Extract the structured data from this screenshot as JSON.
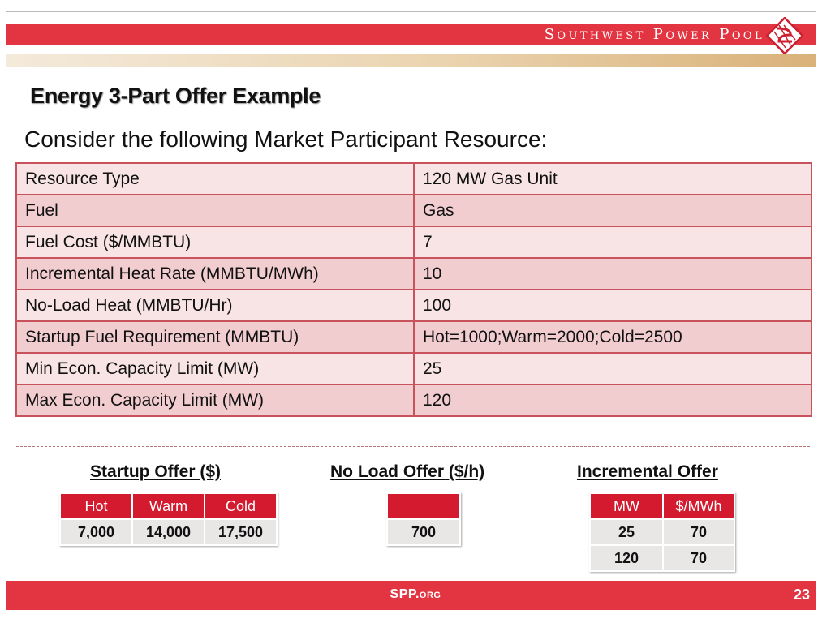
{
  "header": {
    "brand": "Southwest Power Pool",
    "accent_color": "#e23441"
  },
  "slide": {
    "title": "Energy 3-Part Offer Example",
    "subtitle": "Consider the following Market Participant Resource:"
  },
  "resource_table": {
    "rows": [
      {
        "label": "Resource Type",
        "value": "120 MW Gas Unit"
      },
      {
        "label": "Fuel",
        "value": "Gas"
      },
      {
        "label": "Fuel Cost ($/MMBTU)",
        "value": "7"
      },
      {
        "label": "Incremental Heat Rate (MMBTU/MWh)",
        "value": "10"
      },
      {
        "label": "No-Load Heat (MMBTU/Hr)",
        "value": "100"
      },
      {
        "label": "Startup Fuel Requirement (MMBTU)",
        "value": "Hot=1000;Warm=2000;Cold=2500"
      },
      {
        "label": "Min Econ. Capacity Limit (MW)",
        "value": "25"
      },
      {
        "label": "Max Econ. Capacity Limit (MW)",
        "value": "120"
      }
    ]
  },
  "startup_offer": {
    "heading": "Startup Offer ($)",
    "headers": [
      "Hot",
      "Warm",
      "Cold"
    ],
    "values": [
      "7,000",
      "14,000",
      "17,500"
    ]
  },
  "no_load_offer": {
    "heading": "No Load Offer ($/h)",
    "header": "",
    "value": "700"
  },
  "incremental_offer": {
    "heading": "Incremental Offer",
    "headers": [
      "MW",
      "$/MWh"
    ],
    "rows": [
      [
        "25",
        "70"
      ],
      [
        "120",
        "70"
      ]
    ]
  },
  "footer": {
    "site": "SPP.org",
    "page_number": "23"
  }
}
